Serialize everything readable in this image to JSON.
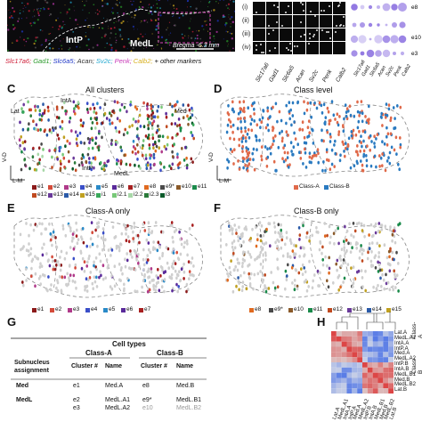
{
  "panel_letters": {
    "c": "C",
    "d": "D",
    "e": "E",
    "f": "F",
    "g": "G",
    "h": "H"
  },
  "micro": {
    "labels": {
      "intp": "IntP",
      "medl": "MedL"
    },
    "scale_bar_text": "Bregma -6.3 mm"
  },
  "markers": [
    {
      "text": "Slc17a6;",
      "color": "#d0203a"
    },
    {
      "text": "Gad1;",
      "color": "#2a9a2a"
    },
    {
      "text": "Slc6a5;",
      "color": "#2038c8"
    },
    {
      "text": "Acan;",
      "color": "#333333"
    },
    {
      "text": "Sv2c;",
      "color": "#22a8d0"
    },
    {
      "text": "Penk;",
      "color": "#c83ab8"
    },
    {
      "text": "Calb2;",
      "color": "#d8b020"
    },
    {
      "text": "+ other markers",
      "color": "#111111"
    }
  ],
  "grid": {
    "rows": [
      "(i)",
      "(ii)",
      "(iii)",
      "(iv)"
    ],
    "cols": [
      "Slc17a6",
      "Gad1",
      "Slc6a5",
      "Acan",
      "Sv2c",
      "Penk",
      "Calb2"
    ]
  },
  "dotplot": {
    "cols": [
      "Slc17a6",
      "Gad1",
      "Slc6a5",
      "Acan",
      "Sv2c",
      "Penk",
      "Calb2"
    ],
    "rows": [
      "e8",
      "e10",
      "e3"
    ],
    "top_row_label": "e8",
    "dot_color": "#8a6fe0"
  },
  "panels": {
    "c": {
      "title": "All clusters",
      "region_labels": {
        "lat": "Lat",
        "inta": "IntA",
        "intp": "IntP",
        "medl": "MedL",
        "med": "Med"
      }
    },
    "d": {
      "title": "Class level"
    },
    "e": {
      "title": "Class-A only"
    },
    "f": {
      "title": "Class-B only"
    },
    "axis": {
      "vd": "V-D",
      "lm": "L-M"
    }
  },
  "legend_c": [
    {
      "text": "e1",
      "color": "#8b1a1a"
    },
    {
      "text": "e2",
      "color": "#d44b3a"
    },
    {
      "text": "e3",
      "color": "#b03a8a"
    },
    {
      "text": "e4",
      "color": "#3a4fc8"
    },
    {
      "text": "e5",
      "color": "#2a8ac8"
    },
    {
      "text": "e6",
      "color": "#5a2a9a"
    },
    {
      "text": "e7",
      "color": "#a82020"
    },
    {
      "text": "e8",
      "color": "#e06a20"
    },
    {
      "text": "e9*",
      "color": "#4a4a4a"
    },
    {
      "text": "e10",
      "color": "#8a5a2a"
    },
    {
      "text": "e11",
      "color": "#1a8a4a"
    },
    {
      "text": "e12",
      "color": "#c04a20"
    },
    {
      "text": "e13",
      "color": "#6a3a9a"
    },
    {
      "text": "e14",
      "color": "#2a5aa8"
    },
    {
      "text": "e15",
      "color": "#c0a020"
    },
    {
      "text": "i1",
      "color": "#3aa85a"
    },
    {
      "text": "i2.1",
      "color": "#78c878"
    },
    {
      "text": "i2.2",
      "color": "#a8d8a8"
    },
    {
      "text": "i2.3",
      "color": "#2a7a3a"
    },
    {
      "text": "i3",
      "color": "#0a5a2a"
    }
  ],
  "legend_d": [
    {
      "text": "Class-A",
      "color": "#e06a4a"
    },
    {
      "text": "Class-B",
      "color": "#2a7ac0"
    }
  ],
  "legend_e": [
    {
      "text": "e1",
      "color": "#8b1a1a"
    },
    {
      "text": "e2",
      "color": "#d44b3a"
    },
    {
      "text": "e3",
      "color": "#b03a8a"
    },
    {
      "text": "e4",
      "color": "#3a4fc8"
    },
    {
      "text": "e5",
      "color": "#2a8ac8"
    },
    {
      "text": "e6",
      "color": "#5a2a9a"
    },
    {
      "text": "e7",
      "color": "#a82020"
    }
  ],
  "legend_f": [
    {
      "text": "e8",
      "color": "#e06a20"
    },
    {
      "text": "e9*",
      "color": "#4a4a4a"
    },
    {
      "text": "e10",
      "color": "#8a5a2a"
    },
    {
      "text": "e11",
      "color": "#1a8a4a"
    },
    {
      "text": "e12",
      "color": "#c04a20"
    },
    {
      "text": "e13",
      "color": "#6a3a9a"
    },
    {
      "text": "e14",
      "color": "#2a5aa8"
    },
    {
      "text": "e15",
      "color": "#c0a020"
    }
  ],
  "table": {
    "cell_types_header": "Cell types",
    "class_a": "Class-A",
    "class_b": "Class-B",
    "subnucleus_header": "Subnucleus",
    "assignment_header": "assignment",
    "cluster_header": "Cluster #",
    "name_header": "Name",
    "rows": [
      {
        "subnucleus": "Med",
        "a_cluster": "e1",
        "a_name": "Med.A",
        "b_cluster": "e8",
        "b_name": "Med.B"
      },
      {
        "subnucleus": "MedL",
        "a_cluster": "e2",
        "a_name": "MedL.A1",
        "b_cluster": "e9*",
        "b_name": "MedL.B1"
      },
      {
        "subnucleus": "",
        "a_cluster": "e3",
        "a_name": "MedL.A2",
        "b_cluster": "e10",
        "b_name": "MedL.B2"
      }
    ]
  },
  "heatmap": {
    "row_labels": [
      "Lat.A",
      "MedL.A1",
      "IntA.A",
      "IntP.A",
      "Med.A",
      "MedL.A2",
      "IntP.B",
      "IntA.B",
      "MedL.B1",
      "Med.B",
      "MedL.B2",
      "Lat.B"
    ],
    "group_labels": {
      "a": "Class-A",
      "b": "Class-B"
    },
    "col_labels": [
      "Lat.A",
      "MedL.A1",
      "IntA.A",
      "IntP.A",
      "Med.A",
      "MedL.A2",
      "IntP.B",
      "IntA.B",
      "MedL.B1",
      "Med.B",
      "MedL.B2",
      "Lat.B"
    ]
  }
}
